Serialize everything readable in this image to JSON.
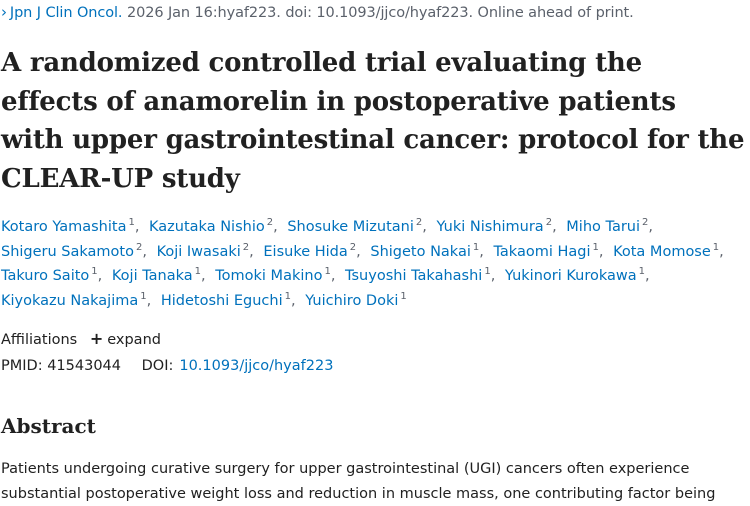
{
  "citation": {
    "journal": "Jpn J Clin Oncol.",
    "details": "2026 Jan 16:hyaf223. doi: 10.1093/jjco/hyaf223. Online ahead of print."
  },
  "title": "A randomized controlled trial evaluating the effects of anamorelin in postoperative patients with upper gastrointestinal cancer: protocol for the CLEAR-UP study",
  "authors": [
    {
      "name": "Kotaro Yamashita",
      "aff": "1"
    },
    {
      "name": "Kazutaka Nishio",
      "aff": "2"
    },
    {
      "name": "Shosuke Mizutani",
      "aff": "2"
    },
    {
      "name": "Yuki Nishimura",
      "aff": "2"
    },
    {
      "name": "Miho Tarui",
      "aff": "2"
    },
    {
      "name": "Shigeru Sakamoto",
      "aff": "2"
    },
    {
      "name": "Koji Iwasaki",
      "aff": "2"
    },
    {
      "name": "Eisuke Hida",
      "aff": "2"
    },
    {
      "name": "Shigeto Nakai",
      "aff": "1"
    },
    {
      "name": "Takaomi Hagi",
      "aff": "1"
    },
    {
      "name": "Kota Momose",
      "aff": "1"
    },
    {
      "name": "Takuro Saito",
      "aff": "1"
    },
    {
      "name": "Koji Tanaka",
      "aff": "1"
    },
    {
      "name": "Tomoki Makino",
      "aff": "1"
    },
    {
      "name": "Tsuyoshi Takahashi",
      "aff": "1"
    },
    {
      "name": "Yukinori Kurokawa",
      "aff": "1"
    },
    {
      "name": "Kiyokazu Nakajima",
      "aff": "1"
    },
    {
      "name": "Hidetoshi Eguchi",
      "aff": "1"
    },
    {
      "name": "Yuichiro Doki",
      "aff": "1"
    }
  ],
  "affiliations": {
    "label": "Affiliations",
    "expand_label": "expand",
    "expand_icon": "plus-icon"
  },
  "ids": {
    "pmid": "PMID: 41543044",
    "doi_label": "DOI:",
    "doi_link": "10.1093/jjco/hyaf223"
  },
  "abstract": {
    "heading": "Abstract",
    "text": "Patients undergoing curative surgery for upper gastrointestinal (UGI) cancers often experience substantial postoperative weight loss and reduction in muscle mass, one contributing factor being"
  },
  "colors": {
    "link": "#0071bc",
    "text": "#212121",
    "muted": "#5b616b"
  }
}
